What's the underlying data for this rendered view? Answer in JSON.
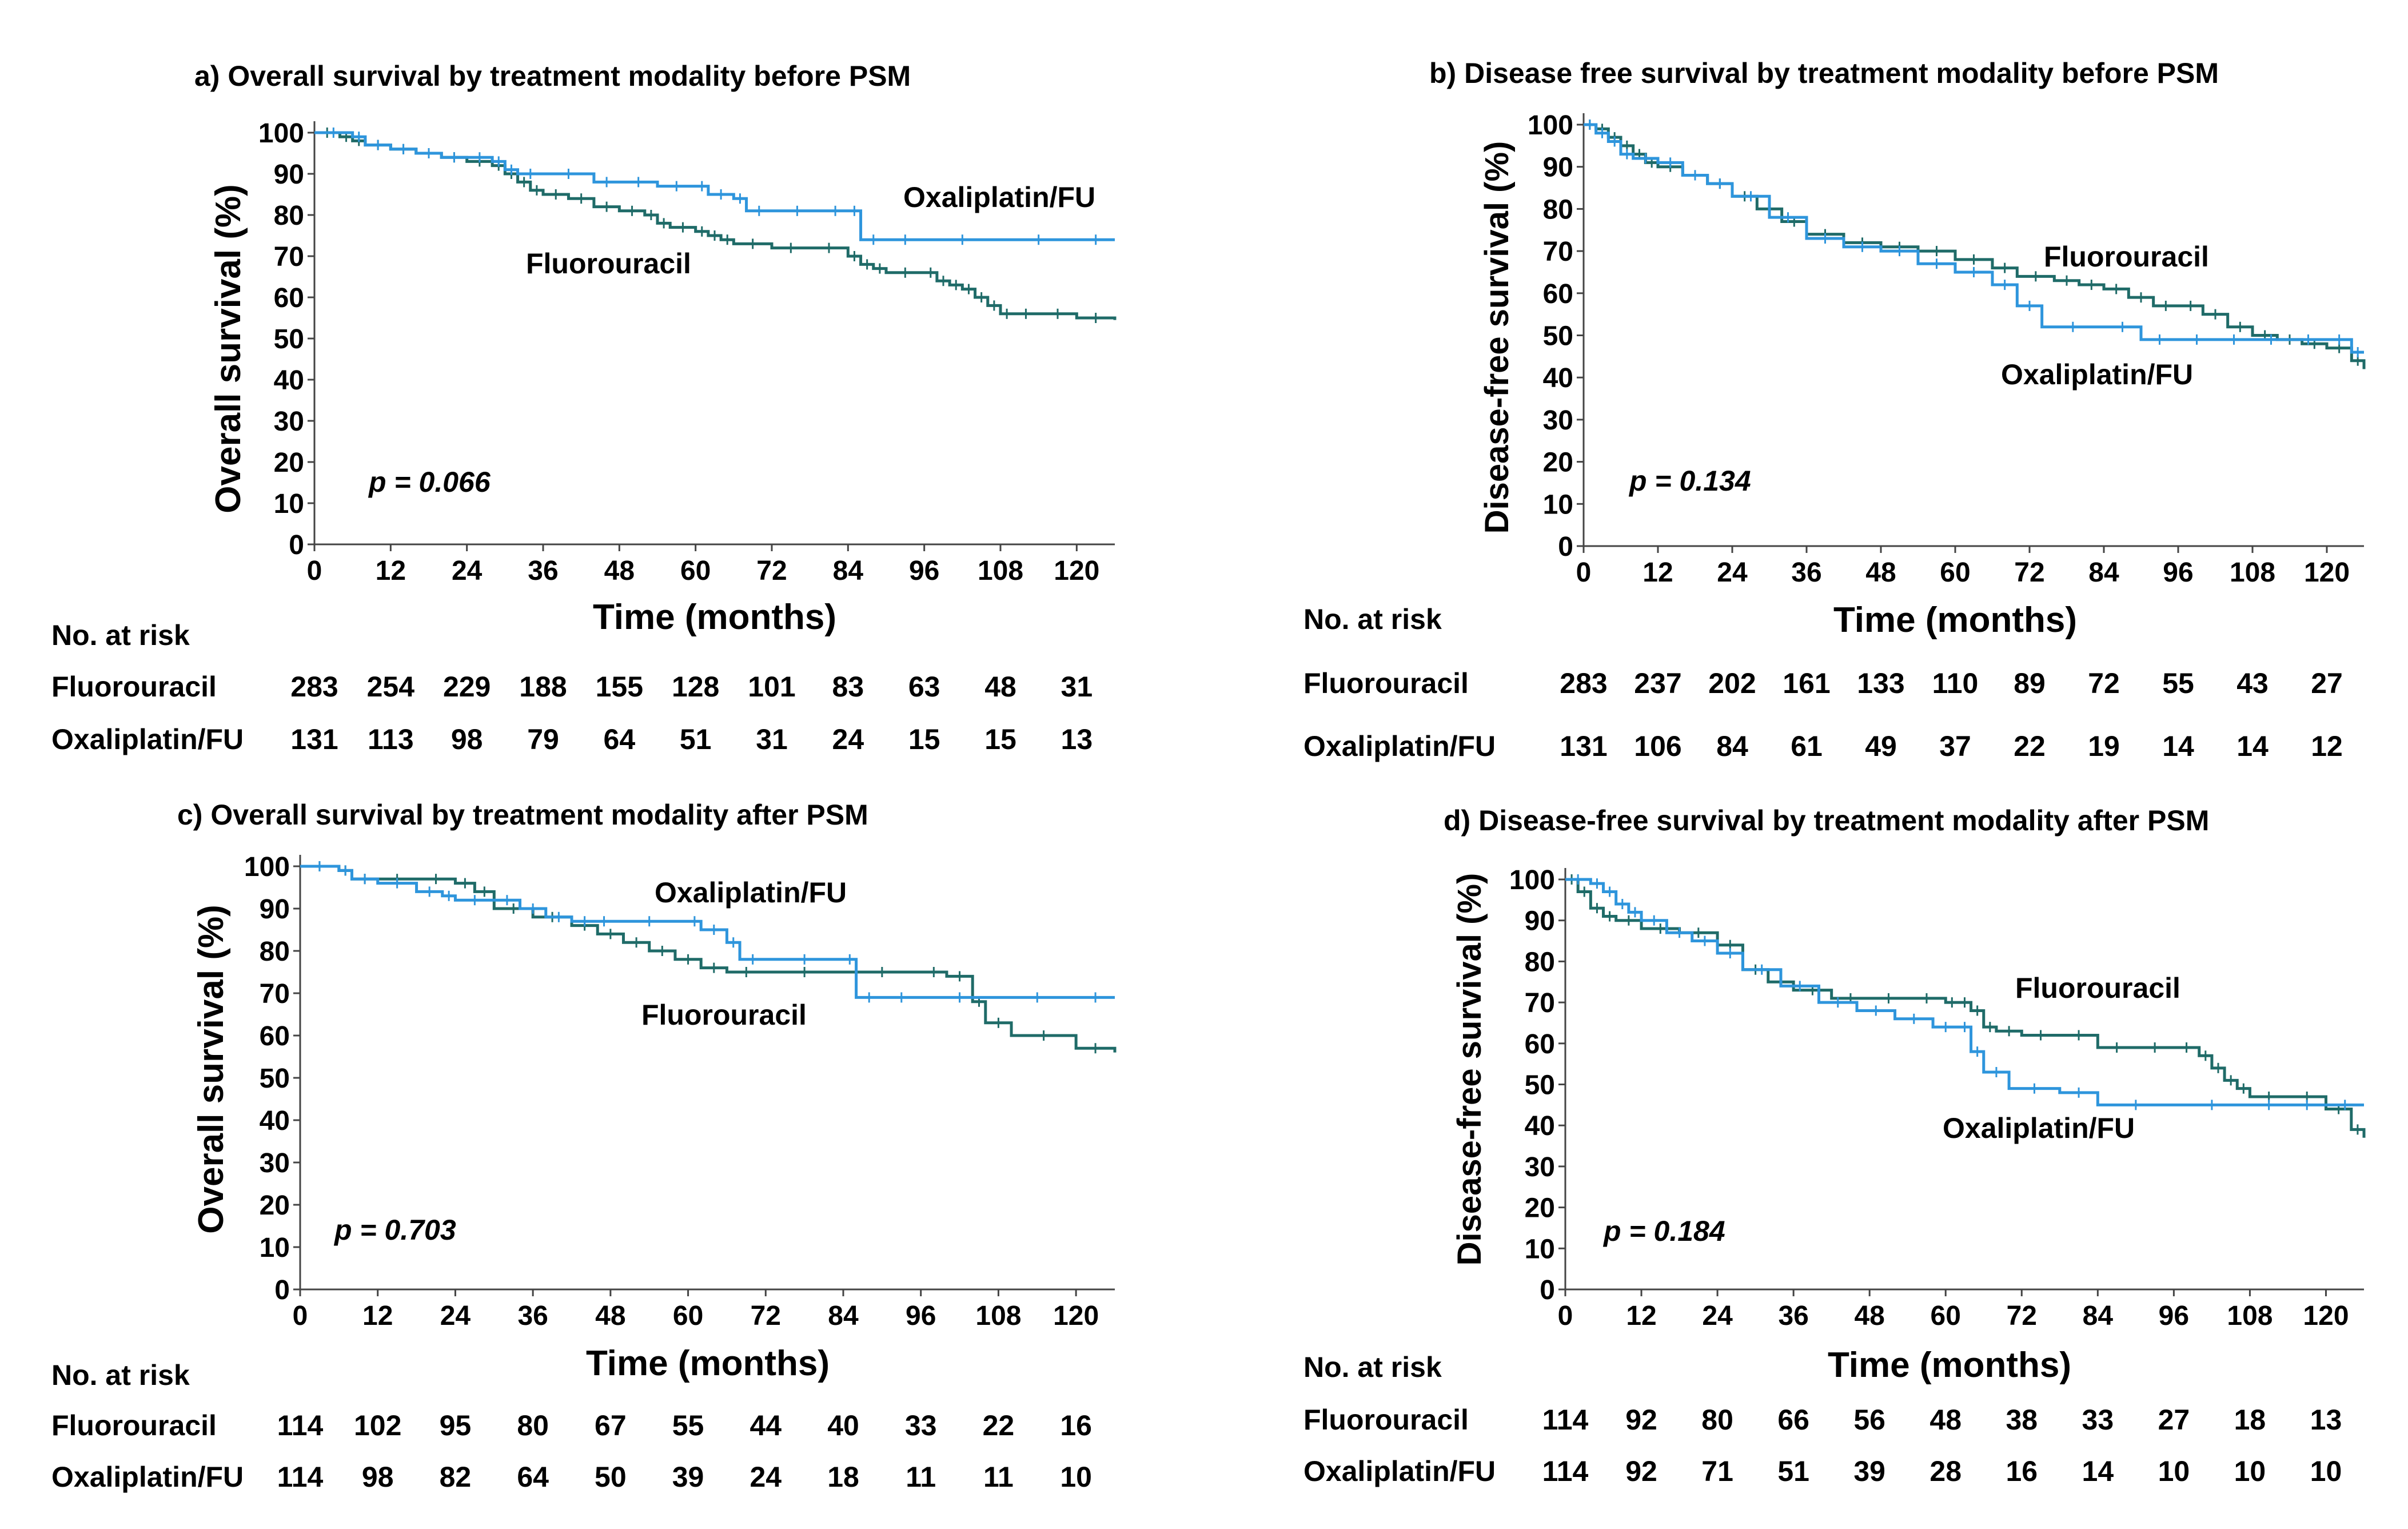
{
  "chart_data": [
    {
      "type": "line",
      "step": true,
      "title": "a) Overall survival by treatment modality before PSM",
      "ylabel": "Overall survival (%)",
      "xlabel": "Time (months)",
      "ylim": [
        0,
        100
      ],
      "xlim": [
        0,
        126
      ],
      "yticks": [
        "0",
        "10",
        "20",
        "30",
        "40",
        "50",
        "60",
        "70",
        "80",
        "90",
        "100"
      ],
      "xticks": [
        "0",
        "12",
        "24",
        "36",
        "48",
        "60",
        "72",
        "84",
        "96",
        "108",
        "120"
      ],
      "p_value": "p = 0.066",
      "colors": {
        "Fluorouracil": "#1f6b68",
        "Oxaliplatin/FU": "#2e95dc"
      },
      "series": [
        {
          "name": "Fluorouracil",
          "x": [
            0,
            4,
            6,
            8,
            12,
            16,
            20,
            24,
            28,
            30,
            32,
            34,
            36,
            40,
            44,
            48,
            52,
            54,
            56,
            60,
            62,
            64,
            66,
            72,
            78,
            84,
            86,
            88,
            90,
            96,
            98,
            100,
            102,
            104,
            106,
            108,
            110,
            114,
            120,
            126
          ],
          "y": [
            100,
            99,
            98,
            97,
            96,
            95,
            94,
            93,
            92,
            90,
            88,
            86,
            85,
            84,
            82,
            81,
            80,
            78,
            77,
            76,
            75,
            74,
            73,
            72,
            72,
            70,
            68,
            67,
            66,
            66,
            64,
            63,
            62,
            60,
            58,
            56,
            56,
            56,
            55,
            54.5
          ]
        },
        {
          "name": "Oxaliplatin/FU",
          "x": [
            0,
            6,
            8,
            12,
            16,
            20,
            24,
            28,
            30,
            32,
            36,
            44,
            48,
            54,
            60,
            62,
            66,
            68,
            72,
            80,
            84,
            86,
            90,
            96,
            108,
            120,
            126
          ],
          "y": [
            100,
            99,
            97,
            96,
            95,
            94,
            94,
            93,
            91,
            90,
            90,
            88,
            88,
            87,
            87,
            85,
            84,
            81,
            81,
            81,
            81,
            74,
            74,
            74,
            74,
            74,
            74
          ]
        }
      ],
      "labels": {
        "fluorouracil": "Fluorouracil",
        "oxaliplatin": "Oxaliplatin/FU"
      },
      "risk_table": {
        "heading": "No. at risk",
        "rows": [
          {
            "name": "Fluorouracil",
            "values": [
              "283",
              "254",
              "229",
              "188",
              "155",
              "128",
              "101",
              "83",
              "63",
              "48",
              "31"
            ]
          },
          {
            "name": "Oxaliplatin/FU",
            "values": [
              "131",
              "113",
              "98",
              "79",
              "64",
              "51",
              "31",
              "24",
              "15",
              "15",
              "13"
            ]
          }
        ]
      }
    },
    {
      "type": "line",
      "step": true,
      "title": "b) Disease free survival by treatment modality before PSM",
      "ylabel": "Disease-free survival (%)",
      "xlabel": "Time (months)",
      "ylim": [
        0,
        100
      ],
      "xlim": [
        0,
        126
      ],
      "yticks": [
        "0",
        "10",
        "20",
        "30",
        "40",
        "50",
        "60",
        "70",
        "80",
        "90",
        "100"
      ],
      "xticks": [
        "0",
        "12",
        "24",
        "36",
        "48",
        "60",
        "72",
        "84",
        "96",
        "108",
        "120"
      ],
      "p_value": "p = 0.134",
      "colors": {
        "Fluorouracil": "#1f6b68",
        "Oxaliplatin/FU": "#2e95dc"
      },
      "series": [
        {
          "name": "Fluorouracil",
          "x": [
            0,
            2,
            4,
            6,
            8,
            10,
            12,
            16,
            20,
            24,
            28,
            32,
            36,
            42,
            48,
            54,
            60,
            66,
            70,
            76,
            80,
            84,
            88,
            92,
            96,
            100,
            104,
            108,
            112,
            116,
            120,
            124,
            126
          ],
          "y": [
            100,
            99,
            97,
            95,
            93,
            91,
            90,
            88,
            86,
            83,
            80,
            77,
            74,
            72,
            71,
            70,
            68,
            66,
            64,
            63,
            62,
            61,
            59,
            57,
            57,
            55,
            52,
            50,
            49,
            48,
            47,
            44,
            42
          ]
        },
        {
          "name": "Oxaliplatin/FU",
          "x": [
            0,
            2,
            4,
            6,
            8,
            12,
            16,
            20,
            24,
            30,
            36,
            42,
            48,
            54,
            60,
            66,
            70,
            74,
            84,
            90,
            96,
            102,
            108,
            114,
            120,
            124,
            126
          ],
          "y": [
            100,
            98,
            96,
            93,
            92,
            91,
            88,
            86,
            83,
            78,
            73,
            71,
            70,
            67,
            65,
            62,
            57,
            52,
            52,
            49,
            49,
            49,
            49,
            49,
            49,
            46,
            46
          ]
        }
      ],
      "labels": {
        "fluorouracil": "Fluorouracil",
        "oxaliplatin": "Oxaliplatin/FU"
      },
      "risk_table": {
        "heading": "No. at risk",
        "rows": [
          {
            "name": "Fluorouracil",
            "values": [
              "283",
              "237",
              "202",
              "161",
              "133",
              "110",
              "89",
              "72",
              "55",
              "43",
              "27"
            ]
          },
          {
            "name": "Oxaliplatin/FU",
            "values": [
              "131",
              "106",
              "84",
              "61",
              "49",
              "37",
              "22",
              "19",
              "14",
              "14",
              "12"
            ]
          }
        ]
      }
    },
    {
      "type": "line",
      "step": true,
      "title": "c) Overall survival by treatment modality after PSM",
      "ylabel": "Overall survival (%)",
      "xlabel": "Time (months)",
      "ylim": [
        0,
        100
      ],
      "xlim": [
        0,
        126
      ],
      "yticks": [
        "0",
        "10",
        "20",
        "30",
        "40",
        "50",
        "60",
        "70",
        "80",
        "90",
        "100"
      ],
      "xticks": [
        "0",
        "12",
        "24",
        "36",
        "48",
        "60",
        "72",
        "84",
        "96",
        "108",
        "120"
      ],
      "p_value": "p = 0.703",
      "colors": {
        "Fluorouracil": "#1f6b68",
        "Oxaliplatin/FU": "#2e95dc"
      },
      "series": [
        {
          "name": "Fluorouracil",
          "x": [
            0,
            6,
            8,
            12,
            18,
            24,
            27,
            30,
            36,
            42,
            46,
            50,
            54,
            58,
            62,
            66,
            72,
            84,
            96,
            100,
            104,
            106,
            110,
            120,
            126
          ],
          "y": [
            100,
            99,
            97,
            97,
            97,
            96,
            94,
            90,
            88,
            86,
            84,
            82,
            80,
            78,
            76,
            75,
            75,
            75,
            75,
            74,
            68,
            63,
            60,
            57,
            56
          ]
        },
        {
          "name": "Oxaliplatin/FU",
          "x": [
            0,
            6,
            8,
            12,
            18,
            22,
            24,
            30,
            34,
            38,
            42,
            46,
            48,
            60,
            62,
            66,
            68,
            72,
            84,
            86,
            90,
            96,
            108,
            120,
            126
          ],
          "y": [
            100,
            99,
            97,
            96,
            94,
            93,
            92,
            92,
            90,
            88,
            87,
            87,
            87,
            87,
            85,
            82,
            78,
            78,
            78,
            69,
            69,
            69,
            69,
            69,
            69
          ]
        }
      ],
      "labels": {
        "fluorouracil": "Fluorouracil",
        "oxaliplatin": "Oxaliplatin/FU"
      },
      "risk_table": {
        "heading": "No. at risk",
        "rows": [
          {
            "name": "Fluorouracil",
            "values": [
              "114",
              "102",
              "95",
              "80",
              "67",
              "55",
              "44",
              "40",
              "33",
              "22",
              "16"
            ]
          },
          {
            "name": "Oxaliplatin/FU",
            "values": [
              "114",
              "98",
              "82",
              "64",
              "50",
              "39",
              "24",
              "18",
              "11",
              "11",
              "10"
            ]
          }
        ]
      }
    },
    {
      "type": "line",
      "step": true,
      "title": "d) Disease-free survival by treatment modality after PSM",
      "ylabel": "Disease-free survival (%)",
      "xlabel": "Time (months)",
      "ylim": [
        0,
        100
      ],
      "xlim": [
        0,
        126
      ],
      "yticks": [
        "0",
        "10",
        "20",
        "30",
        "40",
        "50",
        "60",
        "70",
        "80",
        "90",
        "100"
      ],
      "xticks": [
        "0",
        "12",
        "24",
        "36",
        "48",
        "60",
        "72",
        "84",
        "96",
        "108",
        "120"
      ],
      "p_value": "p = 0.184",
      "colors": {
        "Fluorouracil": "#1f6b68",
        "Oxaliplatin/FU": "#2e95dc"
      },
      "series": [
        {
          "name": "Fluorouracil",
          "x": [
            0,
            2,
            4,
            6,
            8,
            12,
            18,
            24,
            28,
            32,
            36,
            42,
            48,
            54,
            60,
            62,
            64,
            66,
            68,
            72,
            78,
            84,
            90,
            96,
            100,
            102,
            104,
            106,
            108,
            114,
            120,
            124,
            126
          ],
          "y": [
            100,
            97,
            93,
            91,
            90,
            88,
            87,
            84,
            78,
            75,
            73,
            71,
            71,
            71,
            70,
            70,
            68,
            64,
            63,
            62,
            62,
            59,
            59,
            59,
            57,
            54,
            51,
            49,
            47,
            47,
            44,
            39,
            37
          ]
        },
        {
          "name": "Oxaliplatin/FU",
          "x": [
            0,
            4,
            6,
            8,
            10,
            12,
            16,
            20,
            24,
            28,
            34,
            40,
            46,
            52,
            58,
            62,
            64,
            66,
            70,
            78,
            84,
            96,
            108,
            114,
            120,
            126
          ],
          "y": [
            100,
            99,
            97,
            94,
            92,
            90,
            87,
            85,
            82,
            78,
            74,
            70,
            68,
            66,
            64,
            64,
            58,
            53,
            49,
            48,
            45,
            45,
            45,
            45,
            45,
            45
          ]
        }
      ],
      "labels": {
        "fluorouracil": "Fluorouracil",
        "oxaliplatin": "Oxaliplatin/FU"
      },
      "risk_table": {
        "heading": "No. at risk",
        "rows": [
          {
            "name": "Fluorouracil",
            "values": [
              "114",
              "92",
              "80",
              "66",
              "56",
              "48",
              "38",
              "33",
              "27",
              "18",
              "13"
            ]
          },
          {
            "name": "Oxaliplatin/FU",
            "values": [
              "114",
              "92",
              "71",
              "51",
              "39",
              "28",
              "16",
              "14",
              "10",
              "10",
              "10"
            ]
          }
        ]
      }
    }
  ]
}
